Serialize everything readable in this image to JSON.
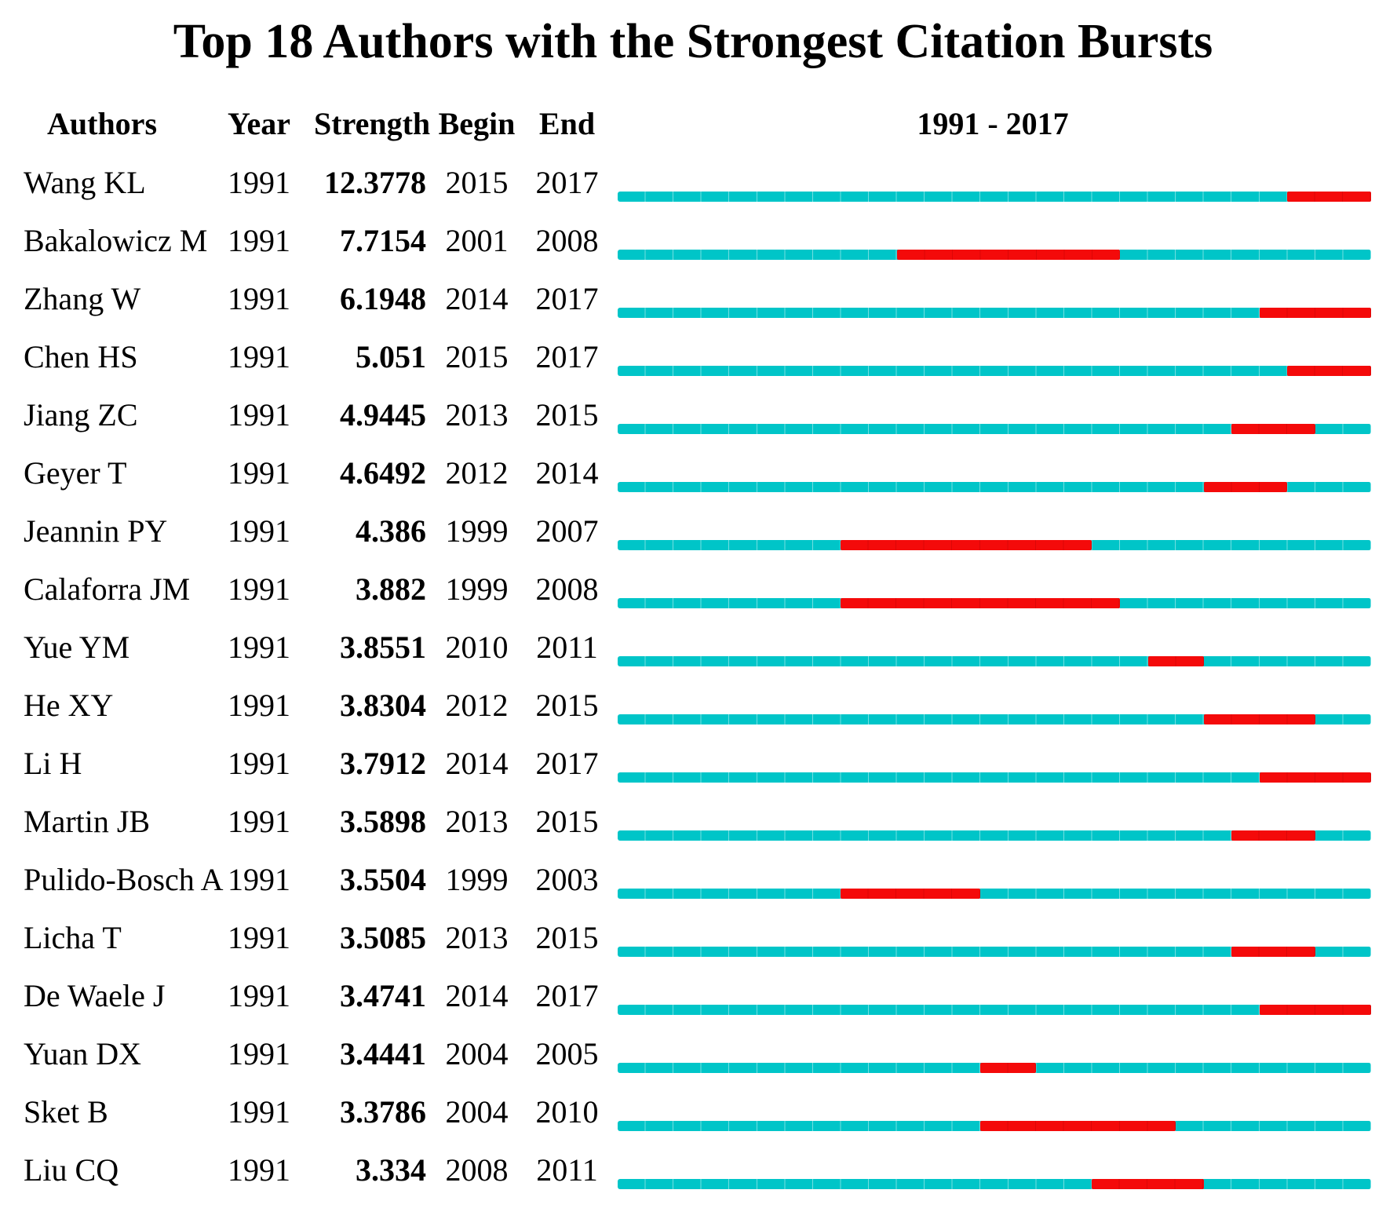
{
  "title": "Top 18 Authors with the Strongest Citation Bursts",
  "header": {
    "authors": "Authors",
    "year": "Year",
    "strength": "Strength",
    "begin": "Begin",
    "end": "End",
    "timeline": "1991 - 2017"
  },
  "colors": {
    "track": "#00c5c8",
    "burst": "#f40a0a"
  },
  "chart_data": {
    "type": "table",
    "title": "Top 18 Authors with the Strongest Citation Bursts",
    "columns": [
      "Authors",
      "Year",
      "Strength",
      "Begin",
      "End"
    ],
    "timeline": {
      "label": "1991 - 2017",
      "min_year": 1991,
      "max_year": 2017
    },
    "track_color": "#00c5c8",
    "burst_color": "#f40a0a",
    "rows": [
      {
        "author": "Wang KL",
        "year": 1991,
        "strength": 12.3778,
        "begin": 2015,
        "end": 2017
      },
      {
        "author": "Bakalowicz M",
        "year": 1991,
        "strength": 7.7154,
        "begin": 2001,
        "end": 2008
      },
      {
        "author": "Zhang W",
        "year": 1991,
        "strength": 6.1948,
        "begin": 2014,
        "end": 2017
      },
      {
        "author": "Chen HS",
        "year": 1991,
        "strength": 5.051,
        "begin": 2015,
        "end": 2017
      },
      {
        "author": "Jiang ZC",
        "year": 1991,
        "strength": 4.9445,
        "begin": 2013,
        "end": 2015
      },
      {
        "author": "Geyer T",
        "year": 1991,
        "strength": 4.6492,
        "begin": 2012,
        "end": 2014
      },
      {
        "author": "Jeannin PY",
        "year": 1991,
        "strength": 4.386,
        "begin": 1999,
        "end": 2007
      },
      {
        "author": "Calaforra JM",
        "year": 1991,
        "strength": 3.882,
        "begin": 1999,
        "end": 2008
      },
      {
        "author": "Yue YM",
        "year": 1991,
        "strength": 3.8551,
        "begin": 2010,
        "end": 2011
      },
      {
        "author": "He XY",
        "year": 1991,
        "strength": 3.8304,
        "begin": 2012,
        "end": 2015
      },
      {
        "author": "Li H",
        "year": 1991,
        "strength": 3.7912,
        "begin": 2014,
        "end": 2017
      },
      {
        "author": "Martin JB",
        "year": 1991,
        "strength": 3.5898,
        "begin": 2013,
        "end": 2015
      },
      {
        "author": "Pulido-Bosch A",
        "year": 1991,
        "strength": 3.5504,
        "begin": 1999,
        "end": 2003
      },
      {
        "author": "Licha T",
        "year": 1991,
        "strength": 3.5085,
        "begin": 2013,
        "end": 2015
      },
      {
        "author": "De Waele J",
        "year": 1991,
        "strength": 3.4741,
        "begin": 2014,
        "end": 2017
      },
      {
        "author": "Yuan DX",
        "year": 1991,
        "strength": 3.4441,
        "begin": 2004,
        "end": 2005
      },
      {
        "author": "Sket B",
        "year": 1991,
        "strength": 3.3786,
        "begin": 2004,
        "end": 2010
      },
      {
        "author": "Liu CQ",
        "year": 1991,
        "strength": 3.334,
        "begin": 2008,
        "end": 2011
      }
    ]
  }
}
